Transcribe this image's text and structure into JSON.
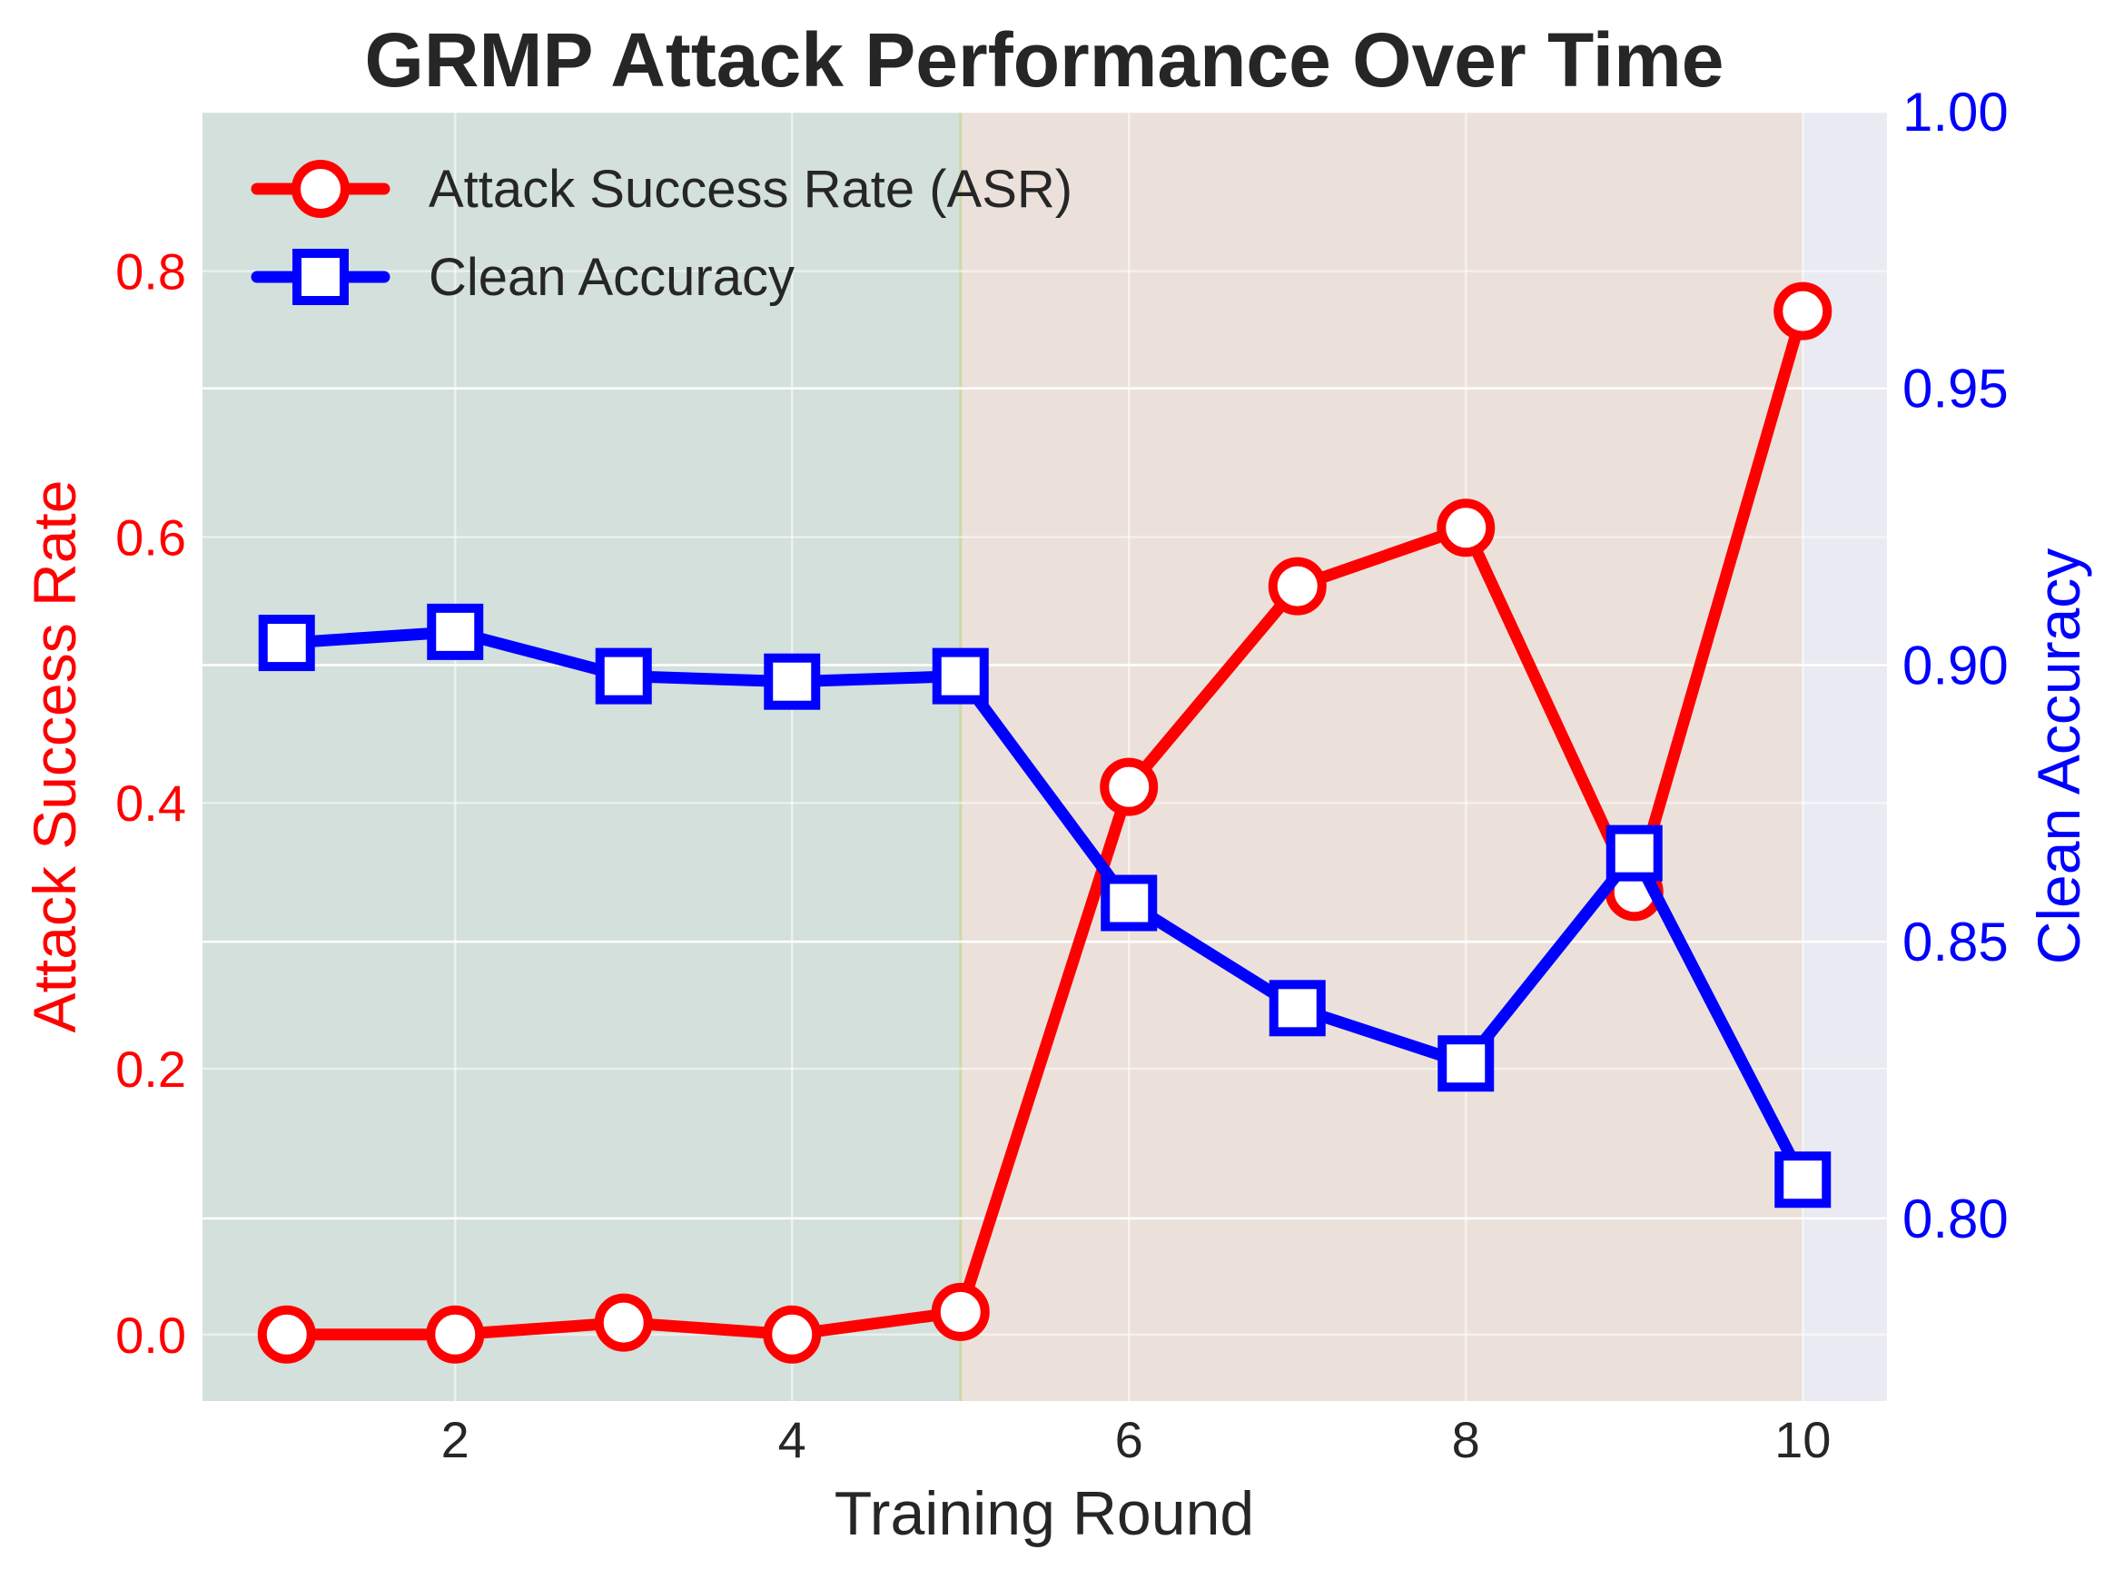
{
  "chart_data": {
    "type": "line",
    "title": "GRMP Attack Performance Over Time",
    "xlabel": "Training Round",
    "ylabel_left": "Attack Success Rate",
    "ylabel_right": "Clean Accuracy",
    "x": [
      1,
      2,
      3,
      4,
      5,
      6,
      7,
      8,
      9,
      10
    ],
    "x_ticks": [
      "2",
      "4",
      "6",
      "8",
      "10"
    ],
    "x_tick_values": [
      2,
      4,
      6,
      8,
      10
    ],
    "xlim": [
      0.5,
      10.5
    ],
    "ylim_left": [
      -0.05,
      0.92
    ],
    "ylim_right": [
      0.767,
      1.0
    ],
    "y_ticks_left": [
      "0.0",
      "0.2",
      "0.4",
      "0.6",
      "0.8"
    ],
    "y_tick_values_left": [
      0.0,
      0.2,
      0.4,
      0.6,
      0.8
    ],
    "y_ticks_right": [
      "0.80",
      "0.85",
      "0.90",
      "0.95",
      "1.00"
    ],
    "y_tick_values_right": [
      0.8,
      0.85,
      0.9,
      0.95,
      1.0
    ],
    "grid": true,
    "legend_position": "top-left",
    "shaded_regions": [
      {
        "x_start": 0.5,
        "x_end": 5,
        "color": "#d3e0dc"
      },
      {
        "x_start": 5,
        "x_end": 10,
        "color": "#ebe1da"
      }
    ],
    "series": [
      {
        "name": "Attack Success Rate (ASR)",
        "axis": "left",
        "color": "#ff0000",
        "marker": "circle",
        "values": [
          0.0,
          0.0,
          0.009,
          0.0,
          0.017,
          0.412,
          0.563,
          0.607,
          0.333,
          0.77
        ]
      },
      {
        "name": "Clean Accuracy",
        "axis": "right",
        "color": "#0000ff",
        "marker": "square",
        "values": [
          0.904,
          0.906,
          0.898,
          0.897,
          0.898,
          0.857,
          0.838,
          0.828,
          0.866,
          0.807
        ]
      }
    ],
    "colors": {
      "plot_background": "#eaeaf2",
      "grid": "#ffffff",
      "left_axis": "#ff0000",
      "right_axis": "#0000ff",
      "text": "#262626"
    }
  }
}
